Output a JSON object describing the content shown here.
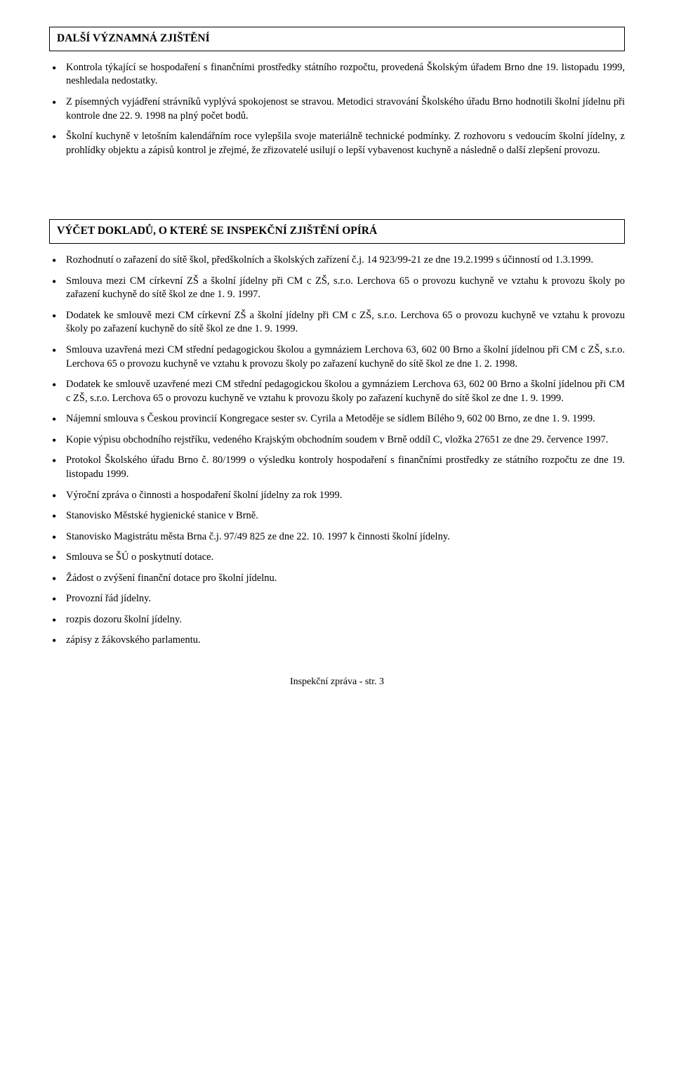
{
  "section1": {
    "title": "DALŠÍ VÝZNAMNÁ ZJIŠTĚNÍ",
    "items": [
      "Kontrola týkající se hospodaření s finančními prostředky státního rozpočtu, provedená Školským úřadem Brno dne 19. listopadu 1999, neshledala nedostatky.",
      "Z písemných vyjádření strávníků vyplývá spokojenost se stravou. Metodici stravování Školského úřadu Brno hodnotili školní jídelnu při kontrole dne 22. 9. 1998 na plný počet bodů.",
      "Školní kuchyně v letošním kalendářním roce vylepšila svoje materiálně technické podmínky. Z rozhovoru s vedoucím školní jídelny, z prohlídky objektu a zápisů kontrol je zřejmé, že zřizovatelé usilují o lepší vybavenost kuchyně a následně o další zlepšení provozu."
    ]
  },
  "section2": {
    "title": "VÝČET DOKLADŮ, O KTERÉ SE INSPEKČNÍ ZJIŠTĚNÍ OPÍRÁ",
    "items": [
      "Rozhodnutí o zařazení do sítě škol, předškolních a školských zařízení č.j. 14 923/99-21 ze dne 19.2.1999 s účinností od 1.3.1999.",
      "Smlouva mezi CM církevní ZŠ a školní jídelny při CM c ZŠ, s.r.o. Lerchova 65 o provozu kuchyně ve vztahu k provozu školy po zařazení kuchyně do sítě škol ze dne 1. 9. 1997.",
      "Dodatek ke smlouvě mezi CM církevní ZŠ a školní jídelny při CM c ZŠ, s.r.o. Lerchova 65 o provozu kuchyně ve vztahu k provozu školy po zařazení kuchyně do sítě škol ze dne 1. 9. 1999.",
      "Smlouva uzavřená mezi CM střední pedagogickou školou a gymnáziem Lerchova 63, 602 00 Brno a školní jídelnou při CM c ZŠ, s.r.o. Lerchova 65 o provozu kuchyně ve vztahu k provozu školy po zařazení kuchyně do sítě škol ze dne 1. 2. 1998.",
      "Dodatek ke smlouvě uzavřené mezi CM střední pedagogickou školou a gymnáziem Lerchova 63, 602 00 Brno a školní jídelnou při CM c ZŠ, s.r.o. Lerchova 65 o provozu kuchyně ve vztahu k provozu školy po zařazení kuchyně do sítě škol ze dne 1. 9. 1999.",
      "Nájemní smlouva s Českou provincií Kongregace sester sv. Cyrila a Metoděje se sídlem Bílého 9, 602 00 Brno, ze dne 1. 9. 1999.",
      "Kopie výpisu obchodního rejstříku, vedeného Krajským obchodním soudem v Brně oddíl C, vložka 27651 ze dne 29. července 1997.",
      "Protokol Školského úřadu Brno č. 80/1999 o výsledku kontroly hospodaření s finančními prostředky ze státního rozpočtu ze dne 19. listopadu 1999.",
      "Výroční zpráva o činnosti a hospodaření školní jídelny za rok 1999.",
      "Stanovisko Městské hygienické stanice v Brně.",
      "Stanovisko Magistrátu města Brna č.j. 97/49 825 ze dne 22. 10. 1997 k činnosti školní jídelny.",
      "Smlouva se ŠÚ o poskytnutí dotace.",
      "Žádost o zvýšení finanční dotace pro školní jídelnu.",
      "Provozní řád jídelny.",
      "rozpis dozoru školní jídelny.",
      "zápisy z žákovského parlamentu."
    ]
  },
  "footer": "Inspekční zpráva - str. 3"
}
